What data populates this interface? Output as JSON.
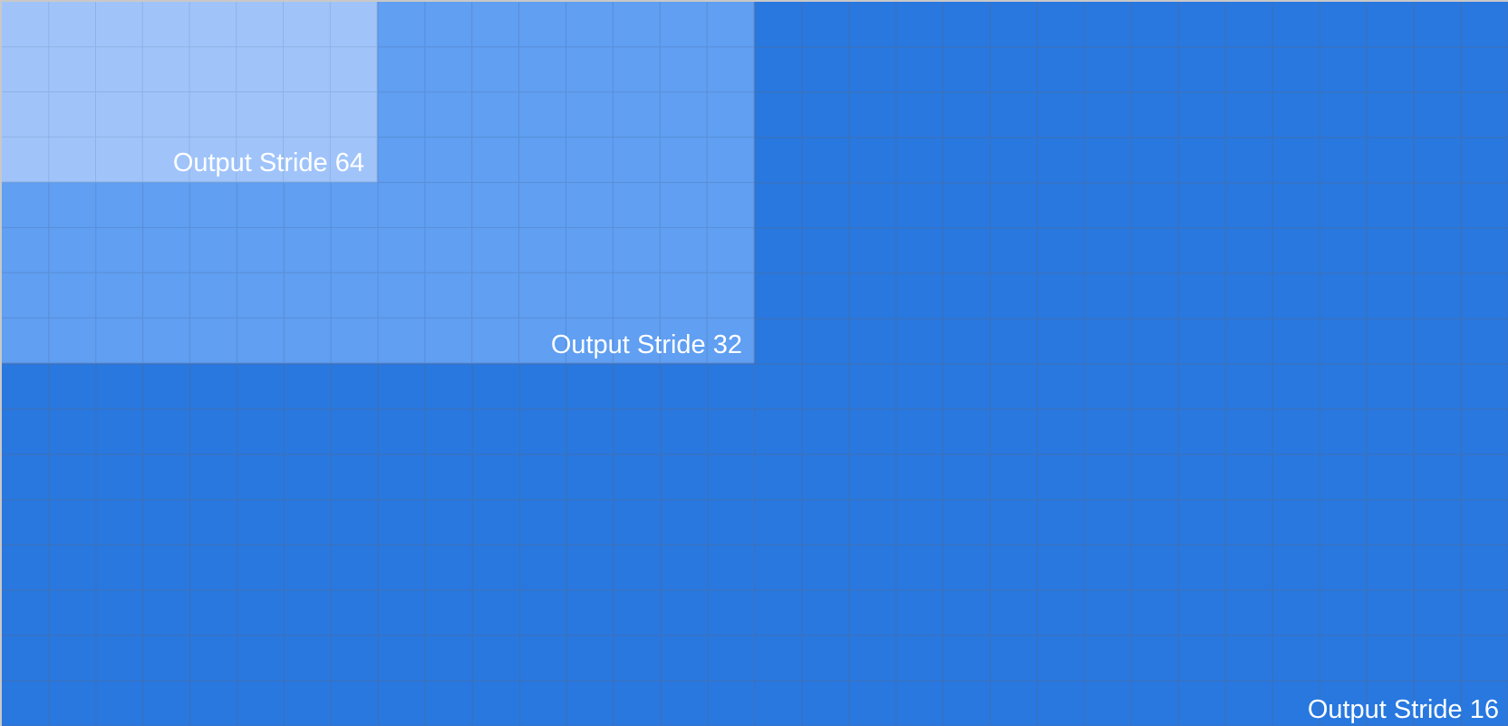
{
  "regions": [
    {
      "id": "output-stride-16",
      "label": "Output Stride 16",
      "fill": "#2878e0",
      "grid_line": "#3f6fb3",
      "cells_x": 32,
      "cells_y": 16
    },
    {
      "id": "output-stride-32",
      "label": "Output Stride 32",
      "fill": "#609ff2",
      "grid_line": "#5a8ed6",
      "cells_x": 16,
      "cells_y": 8
    },
    {
      "id": "output-stride-64",
      "label": "Output Stride 64",
      "fill": "#a0c4fa",
      "grid_line": "#8fb2e4",
      "cells_x": 8,
      "cells_y": 4
    }
  ]
}
